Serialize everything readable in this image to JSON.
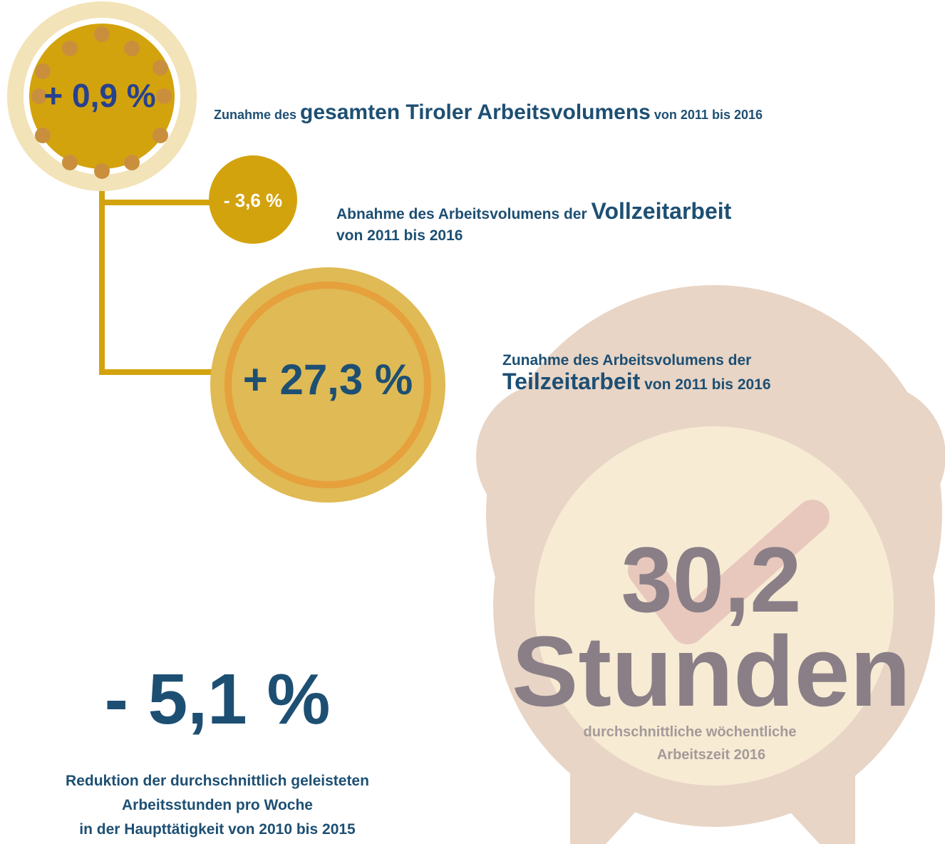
{
  "total": {
    "value": "+ 0,9 %",
    "text": [
      "Zunahme des",
      "gesamten Tiroler Arbeitsvolumens",
      "von 2011 bis 2016"
    ]
  },
  "fulltime": {
    "value": "- 3,6 %",
    "text": [
      "Abnahme des Arbeitsvolumens der",
      "Vollzeitarbeit",
      "von 2011 bis 2016"
    ]
  },
  "parttime": {
    "value": "+ 27,3 %",
    "text": [
      "Zunahme des Arbeitsvolumens der",
      "Teilzeitarbeit",
      "von 2011 bis 2016"
    ]
  },
  "hours": {
    "value": "30,2",
    "unit": "Stunden",
    "text": [
      "durchschnittliche wöchentliche",
      "Arbeitszeit 2016"
    ]
  },
  "reduction": {
    "value": "- 5,1 %",
    "text": [
      "Reduktion der durchschnittlich geleisteten",
      "Arbeitsstunden pro Woche",
      "in der Haupttätigkeit von 2010 bis 2015"
    ]
  }
}
